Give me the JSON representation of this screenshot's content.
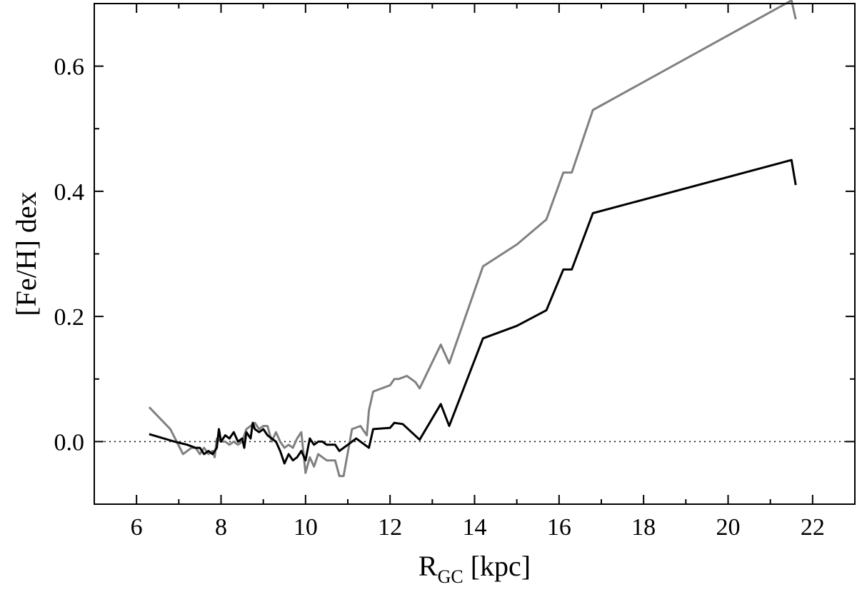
{
  "chart_data": {
    "type": "line",
    "title": "",
    "xlabel": {
      "main": "R",
      "subscript": "GC",
      "suffix": " [kpc]"
    },
    "ylabel": "[Fe/H] dex",
    "xlim": [
      5,
      23
    ],
    "ylim": [
      -0.1,
      0.7
    ],
    "xticks": [
      6,
      8,
      10,
      12,
      14,
      16,
      18,
      20,
      22
    ],
    "yticks": [
      0.0,
      0.2,
      0.4,
      0.6
    ],
    "xtick_labels": [
      "6",
      "8",
      "10",
      "12",
      "14",
      "16",
      "18",
      "20",
      "22"
    ],
    "ytick_labels": [
      "0.0",
      "0.2",
      "0.4",
      "0.6"
    ],
    "xminor": [
      5,
      7,
      9,
      11,
      13,
      15,
      17,
      19,
      21,
      23
    ],
    "yminor": [
      -0.1,
      0.1,
      0.3,
      0.5
    ],
    "grid": false,
    "reference_line": {
      "y": 0.0,
      "style": "dotted",
      "color": "#000000"
    },
    "series": [
      {
        "color": "#808080",
        "x": [
          6.3,
          6.8,
          7.1,
          7.3,
          7.4,
          7.5,
          7.6,
          7.7,
          7.8,
          7.85,
          7.9,
          8.0,
          8.1,
          8.2,
          8.3,
          8.4,
          8.5,
          8.6,
          8.7,
          8.8,
          8.9,
          9.0,
          9.1,
          9.2,
          9.3,
          9.4,
          9.5,
          9.6,
          9.7,
          9.8,
          9.9,
          10.0,
          10.1,
          10.2,
          10.3,
          10.4,
          10.5,
          10.6,
          10.7,
          10.8,
          10.9,
          11.1,
          11.3,
          11.45,
          11.5,
          11.6,
          11.8,
          12.0,
          12.1,
          12.2,
          12.4,
          12.6,
          12.7,
          13.2,
          13.4,
          14.2,
          15.0,
          15.7,
          16.1,
          16.2,
          16.3,
          16.8,
          21.5,
          21.6
        ],
        "y": [
          0.055,
          0.02,
          -0.02,
          -0.01,
          -0.01,
          -0.02,
          -0.01,
          -0.02,
          -0.015,
          -0.025,
          0.005,
          0.0,
          0.0,
          -0.005,
          0.0,
          -0.005,
          0.0,
          0.02,
          0.025,
          0.03,
          0.02,
          0.025,
          0.025,
          0.0,
          0.015,
          0.0,
          -0.01,
          -0.005,
          -0.01,
          0.005,
          0.015,
          -0.05,
          -0.025,
          -0.04,
          -0.02,
          -0.025,
          -0.03,
          -0.03,
          -0.03,
          -0.055,
          -0.055,
          0.02,
          0.025,
          0.01,
          0.05,
          0.08,
          0.085,
          0.09,
          0.1,
          0.1,
          0.105,
          0.095,
          0.085,
          0.155,
          0.125,
          0.28,
          0.315,
          0.355,
          0.43,
          0.43,
          0.43,
          0.53,
          0.705,
          0.675
        ]
      },
      {
        "color": "#000000",
        "x": [
          6.3,
          6.9,
          7.2,
          7.4,
          7.5,
          7.6,
          7.7,
          7.8,
          7.9,
          7.95,
          8.0,
          8.1,
          8.2,
          8.3,
          8.4,
          8.5,
          8.55,
          8.6,
          8.7,
          8.75,
          8.8,
          8.9,
          9.0,
          9.1,
          9.2,
          9.3,
          9.4,
          9.5,
          9.6,
          9.7,
          9.8,
          9.9,
          10.0,
          10.1,
          10.2,
          10.3,
          10.4,
          10.5,
          10.6,
          10.7,
          10.8,
          11.0,
          11.2,
          11.3,
          11.4,
          11.5,
          11.6,
          12.0,
          12.1,
          12.3,
          12.7,
          13.2,
          13.4,
          14.2,
          15.0,
          15.7,
          16.1,
          16.2,
          16.3,
          16.8,
          21.5,
          21.6
        ],
        "y": [
          0.012,
          0.0,
          -0.005,
          -0.01,
          -0.01,
          -0.02,
          -0.015,
          -0.02,
          -0.01,
          0.02,
          0.0,
          0.01,
          0.005,
          0.015,
          0.0,
          0.005,
          -0.01,
          0.015,
          0.005,
          0.03,
          0.02,
          0.015,
          0.02,
          0.01,
          0.005,
          0.0,
          -0.015,
          -0.035,
          -0.02,
          -0.03,
          -0.025,
          -0.015,
          -0.03,
          0.005,
          -0.005,
          0.0,
          0.0,
          -0.005,
          -0.005,
          -0.005,
          -0.015,
          -0.005,
          0.005,
          0.0,
          -0.005,
          -0.01,
          0.02,
          0.022,
          0.03,
          0.028,
          0.003,
          0.06,
          0.025,
          0.165,
          0.185,
          0.21,
          0.275,
          0.275,
          0.275,
          0.365,
          0.45,
          0.41
        ]
      }
    ]
  }
}
